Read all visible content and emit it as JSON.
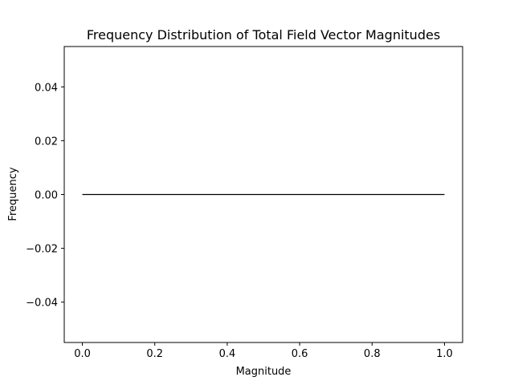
{
  "chart_data": {
    "type": "line",
    "title": "Frequency Distribution of Total Field Vector Magnitudes",
    "xlabel": "Magnitude",
    "ylabel": "Frequency",
    "xlim": [
      -0.05,
      1.05
    ],
    "ylim": [
      -0.055,
      0.055
    ],
    "xticks": [
      0.0,
      0.2,
      0.4,
      0.6,
      0.8,
      1.0
    ],
    "xtick_labels": [
      "0.0",
      "0.2",
      "0.4",
      "0.6",
      "0.8",
      "1.0"
    ],
    "yticks": [
      -0.04,
      -0.02,
      0.0,
      0.02,
      0.04
    ],
    "ytick_labels": [
      "−0.04",
      "−0.02",
      "0.00",
      "0.02",
      "0.04"
    ],
    "grid": false,
    "series": [
      {
        "x": [
          0.0,
          1.0
        ],
        "y": [
          0.0,
          0.0
        ],
        "color": "#000000"
      }
    ]
  }
}
